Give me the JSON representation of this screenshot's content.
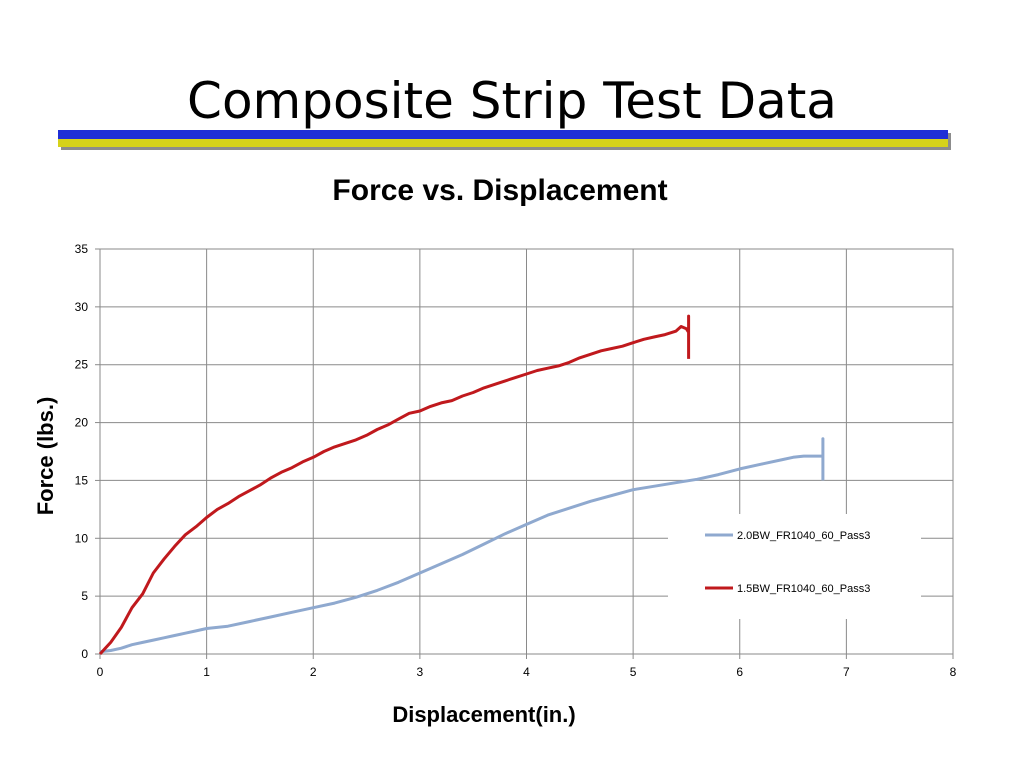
{
  "slide": {
    "title": "Composite Strip Test Data",
    "colors": {
      "rule_blue": "#1f2fd6",
      "rule_yellow": "#d6d21a"
    }
  },
  "chart_data": {
    "type": "line",
    "title": "Force vs. Displacement",
    "xlabel": "Displacement(in.)",
    "ylabel": "Force (lbs.)",
    "xlim": [
      0,
      8
    ],
    "ylim": [
      0,
      35
    ],
    "xticks": [
      0,
      1,
      2,
      3,
      4,
      5,
      6,
      7,
      8
    ],
    "yticks": [
      0,
      5,
      10,
      15,
      20,
      25,
      30,
      35
    ],
    "grid": true,
    "legend_position": "right",
    "series": [
      {
        "name": "2.0BW_FR1040_60_Pass3",
        "color": "#8fa9cf",
        "x": [
          0,
          0.1,
          0.2,
          0.3,
          0.4,
          0.5,
          0.6,
          0.7,
          0.8,
          0.9,
          1.0,
          1.2,
          1.4,
          1.6,
          1.8,
          2.0,
          2.2,
          2.4,
          2.6,
          2.8,
          3.0,
          3.2,
          3.4,
          3.6,
          3.8,
          4.0,
          4.2,
          4.4,
          4.6,
          4.8,
          5.0,
          5.2,
          5.4,
          5.6,
          5.8,
          6.0,
          6.2,
          6.4,
          6.5,
          6.6,
          6.7,
          6.78,
          6.78,
          6.78
        ],
        "y": [
          0.2,
          0.3,
          0.5,
          0.8,
          1.0,
          1.2,
          1.4,
          1.6,
          1.8,
          2.0,
          2.2,
          2.4,
          2.8,
          3.2,
          3.6,
          4.0,
          4.4,
          4.9,
          5.5,
          6.2,
          7.0,
          7.8,
          8.6,
          9.5,
          10.4,
          11.2,
          12.0,
          12.6,
          13.2,
          13.7,
          14.2,
          14.5,
          14.8,
          15.1,
          15.5,
          16.0,
          16.4,
          16.8,
          17.0,
          17.1,
          17.1,
          17.1,
          18.6,
          15.0
        ]
      },
      {
        "name": "1.5BW_FR1040_60_Pass3",
        "color": "#c0191d",
        "x": [
          0,
          0.1,
          0.2,
          0.3,
          0.4,
          0.5,
          0.6,
          0.7,
          0.8,
          0.9,
          1.0,
          1.1,
          1.2,
          1.3,
          1.4,
          1.5,
          1.6,
          1.7,
          1.8,
          1.9,
          2.0,
          2.1,
          2.2,
          2.3,
          2.4,
          2.5,
          2.6,
          2.7,
          2.8,
          2.9,
          3.0,
          3.1,
          3.2,
          3.3,
          3.4,
          3.5,
          3.6,
          3.7,
          3.8,
          3.9,
          4.0,
          4.1,
          4.2,
          4.3,
          4.4,
          4.5,
          4.6,
          4.7,
          4.8,
          4.9,
          5.0,
          5.1,
          5.2,
          5.3,
          5.4,
          5.45,
          5.5,
          5.52,
          5.52,
          5.52
        ],
        "y": [
          0,
          1.0,
          2.3,
          4.0,
          5.2,
          7.0,
          8.2,
          9.3,
          10.3,
          11.0,
          11.8,
          12.5,
          13.0,
          13.6,
          14.1,
          14.6,
          15.2,
          15.7,
          16.1,
          16.6,
          17.0,
          17.5,
          17.9,
          18.2,
          18.5,
          18.9,
          19.4,
          19.8,
          20.3,
          20.8,
          21.0,
          21.4,
          21.7,
          21.9,
          22.3,
          22.6,
          23.0,
          23.3,
          23.6,
          23.9,
          24.2,
          24.5,
          24.7,
          24.9,
          25.2,
          25.6,
          25.9,
          26.2,
          26.4,
          26.6,
          26.9,
          27.2,
          27.4,
          27.6,
          27.9,
          28.3,
          28.1,
          27.8,
          29.2,
          25.5
        ]
      }
    ]
  }
}
